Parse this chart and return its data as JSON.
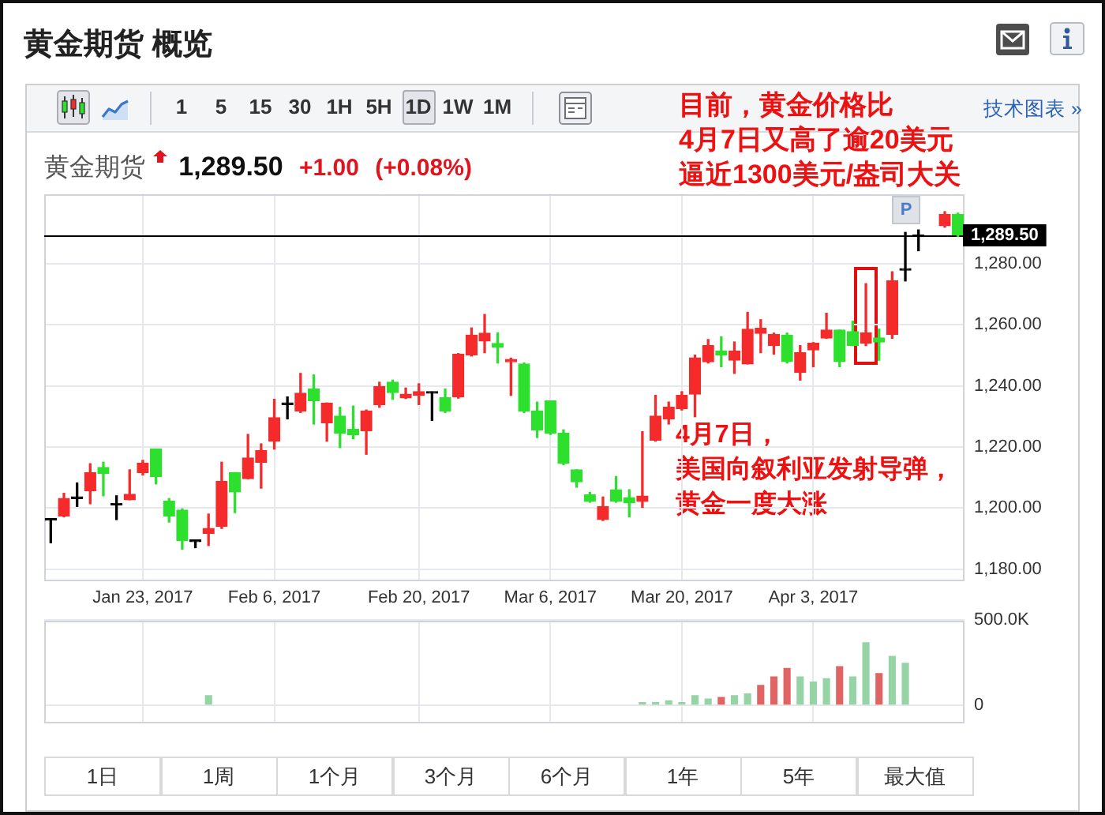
{
  "chart_data": [
    {
      "type": "candlestick",
      "title": "黄金期货 概览",
      "subtitle": "黄金期货 1,289.50 +1.00 (+0.08%)",
      "annotations": [
        "目前，黄金价格比4月7日又高了逾20美元逼近1300美元/盎司大关",
        "4月7日，美国向叙利亚发射导弹，黄金一度大涨",
        "P",
        "1 5 15 30 1H 5H 1D 1W 1M",
        "技术图表 »",
        "1日",
        "1周",
        "1个月",
        "3个月",
        "6个月",
        "1年",
        "5年",
        "最大值"
      ],
      "categories": [
        null,
        null,
        null,
        null,
        null,
        null,
        null,
        "Jan 23, 2017",
        null,
        null,
        null,
        null,
        null,
        null,
        null,
        null,
        null,
        "Feb 6, 2017",
        null,
        null,
        null,
        null,
        null,
        null,
        null,
        null,
        null,
        null,
        "Feb 20, 2017",
        null,
        null,
        null,
        null,
        null,
        null,
        null,
        null,
        null,
        "Mar 6, 2017",
        null,
        null,
        null,
        null,
        null,
        null,
        null,
        null,
        null,
        "Mar 20, 2017",
        null,
        null,
        null,
        null,
        null,
        null,
        null,
        null,
        null,
        "Apr 3, 2017",
        null,
        null,
        null,
        null,
        null,
        null,
        null,
        null,
        null,
        null,
        null
      ],
      "ohlc": [
        [
          1196,
          1196,
          1188.6,
          1196
        ],
        [
          1197.4,
          1204.8,
          1197.1,
          1203.1
        ],
        [
          1203.1,
          1208.2,
          1200.5,
          1203.1
        ],
        [
          1205.6,
          1214.5,
          1201.4,
          1211.6
        ],
        [
          1213.3,
          1215,
          1204,
          1211.3
        ],
        [
          1201,
          1204,
          1196.2,
          1201
        ],
        [
          1202.7,
          1212.5,
          1202.7,
          1204.5
        ],
        [
          1211.6,
          1215.6,
          1210.8,
          1214.7
        ],
        [
          1219.3,
          1219.3,
          1207.9,
          1210.3
        ],
        [
          1202.2,
          1203.1,
          1195.4,
          1197.4
        ],
        [
          1199.3,
          1199.7,
          1186.5,
          1189.4
        ],
        [
          1189,
          1189,
          1187,
          1189
        ],
        [
          1191.6,
          1198,
          1187.7,
          1193.3
        ],
        [
          1194,
          1215,
          1193.3,
          1208.7
        ],
        [
          1211.6,
          1211.6,
          1198.5,
          1205.3
        ],
        [
          1209.6,
          1224.1,
          1209.6,
          1216.4
        ],
        [
          1215,
          1221,
          1206.5,
          1218.8
        ],
        [
          1221.9,
          1235.6,
          1219.3,
          1229.6
        ],
        [
          1233.9,
          1236.4,
          1229.2,
          1233.9
        ],
        [
          1231.8,
          1244.1,
          1231.3,
          1237.6
        ],
        [
          1239,
          1243.6,
          1227.5,
          1235.2
        ],
        [
          1227.9,
          1234.4,
          1221.9,
          1234.4
        ],
        [
          1230.1,
          1233,
          1219.8,
          1224.5
        ],
        [
          1225.8,
          1233.4,
          1222.7,
          1224
        ],
        [
          1225.3,
          1232.1,
          1217.6,
          1231.8
        ],
        [
          1233.9,
          1241.2,
          1233,
          1239.8
        ],
        [
          1241.2,
          1241.9,
          1235.6,
          1237.8
        ],
        [
          1236.1,
          1239.3,
          1235.9,
          1237.3
        ],
        [
          1236.9,
          1240.7,
          1233.9,
          1238.1
        ],
        [
          1237.6,
          1238,
          1228.7,
          1237.6
        ],
        [
          1236.1,
          1239,
          1231.3,
          1231.8
        ],
        [
          1236.4,
          1250.6,
          1236,
          1250.4
        ],
        [
          1250.1,
          1259,
          1249.8,
          1256.6
        ],
        [
          1254.7,
          1263.4,
          1250.9,
          1257.3
        ],
        [
          1253.9,
          1257.4,
          1247.5,
          1252.7
        ],
        [
          1247.9,
          1249.1,
          1236.9,
          1248.7
        ],
        [
          1247.2,
          1247.5,
          1231.3,
          1231.8
        ],
        [
          1231.8,
          1234.7,
          1223.1,
          1225.6
        ],
        [
          1235.1,
          1235.1,
          1224.1,
          1224.5
        ],
        [
          1224.5,
          1225.6,
          1214.2,
          1214.7
        ],
        [
          1212.5,
          1212.5,
          1206.8,
          1208.6
        ],
        [
          1204.3,
          1205.1,
          1201.9,
          1202.2
        ],
        [
          1196.2,
          1203.6,
          1195.9,
          1200.5
        ],
        [
          1206,
          1210.3,
          1201.9,
          1202.2
        ],
        [
          1203.4,
          1206,
          1197.1,
          1201.7
        ],
        [
          1202.2,
          1225,
          1200.2,
          1203.9
        ],
        [
          1222.2,
          1236.9,
          1221.9,
          1230.1
        ],
        [
          1229.2,
          1234.7,
          1227.5,
          1233
        ],
        [
          1232.5,
          1238.1,
          1232.1,
          1236.9
        ],
        [
          1237.3,
          1250.1,
          1229.9,
          1249.2
        ],
        [
          1247.9,
          1255.2,
          1247.5,
          1253.2
        ],
        [
          1251.4,
          1256.1,
          1246.3,
          1250.1
        ],
        [
          1248.4,
          1254.4,
          1244.1,
          1251.4
        ],
        [
          1247.2,
          1264.1,
          1247.2,
          1258.6
        ],
        [
          1257.2,
          1261.7,
          1250.9,
          1258.9
        ],
        [
          1253.2,
          1257.3,
          1250.4,
          1256.9
        ],
        [
          1256.6,
          1257.3,
          1247.5,
          1248
        ],
        [
          1244.4,
          1253.2,
          1241.9,
          1250.9
        ],
        [
          1251.8,
          1254.2,
          1246.3,
          1254
        ],
        [
          1255.7,
          1263.8,
          1255.6,
          1258.3
        ],
        [
          1258.3,
          1258.3,
          1246.3,
          1248
        ],
        [
          1257.8,
          1261.2,
          1253.2,
          1253.2
        ],
        [
          1254,
          1273.5,
          1253.2,
          1257.4
        ],
        [
          1255.7,
          1258.6,
          1248.4,
          1254.4
        ],
        [
          1256.9,
          1277.4,
          1255.6,
          1274.4
        ],
        [
          1277.9,
          1290.3,
          1274.4,
          1277.9
        ],
        [
          1288.9,
          1291.1,
          1284.3,
          1288.9
        ],
        null,
        [
          1292.5,
          1297.1,
          1292,
          1296.2
        ],
        [
          1296.2,
          1296.6,
          1289,
          1289.5
        ]
      ],
      "colors": [
        "#000000",
        "#f52a2a",
        "#000000",
        "#f52a2a",
        "#2ee02e",
        "#000000",
        "#f52a2a",
        "#f52a2a",
        "#2ee02e",
        "#2ee02e",
        "#2ee02e",
        "#000000",
        "#f52a2a",
        "#f52a2a",
        "#2ee02e",
        "#f52a2a",
        "#f52a2a",
        "#f52a2a",
        "#000000",
        "#f52a2a",
        "#2ee02e",
        "#f52a2a",
        "#2ee02e",
        "#2ee02e",
        "#f52a2a",
        "#f52a2a",
        "#2ee02e",
        "#f52a2a",
        "#f52a2a",
        "#000000",
        "#2ee02e",
        "#f52a2a",
        "#f52a2a",
        "#f52a2a",
        "#2ee02e",
        "#f52a2a",
        "#2ee02e",
        "#2ee02e",
        "#2ee02e",
        "#2ee02e",
        "#2ee02e",
        "#2ee02e",
        "#f52a2a",
        "#2ee02e",
        "#2ee02e",
        "#f52a2a",
        "#f52a2a",
        "#f52a2a",
        "#f52a2a",
        "#f52a2a",
        "#f52a2a",
        "#2ee02e",
        "#f52a2a",
        "#f52a2a",
        "#f52a2a",
        "#f52a2a",
        "#2ee02e",
        "#f52a2a",
        "#f52a2a",
        "#f52a2a",
        "#2ee02e",
        "#2ee02e",
        "#f52a2a",
        "#2ee02e",
        "#f52a2a",
        "#000000",
        "#000000",
        null,
        "#f52a2a",
        "#2ee02e"
      ],
      "ylim": [
        1176,
        1303
      ],
      "yticks": [
        {
          "value": 1180,
          "label": "1,180.00"
        },
        {
          "value": 1200,
          "label": "1,200.00"
        },
        {
          "value": 1220,
          "label": "1,220.00"
        },
        {
          "value": 1240,
          "label": "1,240.00"
        },
        {
          "value": 1260,
          "label": "1,260.00"
        },
        {
          "value": 1280,
          "label": "1,280.00"
        }
      ],
      "grid": true,
      "ref_lines": [
        {
          "axis": "y",
          "value": 1289.5,
          "label": "1,289.50",
          "color": "#000000"
        }
      ]
    },
    {
      "type": "bar",
      "categories": [
        null,
        null,
        null,
        null,
        null,
        null,
        null,
        null,
        null,
        null,
        null,
        null,
        null,
        null,
        null,
        null,
        null,
        null,
        null,
        null,
        null,
        null,
        null,
        null,
        null,
        null,
        null,
        null,
        null,
        null,
        null,
        null,
        null,
        null,
        null,
        null,
        null,
        null,
        null,
        null,
        null,
        null,
        null,
        null,
        null,
        null,
        null,
        null,
        null,
        null,
        null,
        null,
        null,
        null,
        null,
        null,
        null,
        null,
        null,
        null,
        null,
        null,
        null,
        null,
        null,
        null,
        null,
        null,
        null,
        null
      ],
      "values": [
        null,
        null,
        null,
        null,
        null,
        null,
        null,
        null,
        null,
        null,
        null,
        null,
        60000,
        null,
        null,
        null,
        null,
        null,
        null,
        null,
        null,
        null,
        null,
        null,
        null,
        null,
        null,
        null,
        null,
        null,
        null,
        null,
        null,
        null,
        null,
        null,
        null,
        null,
        null,
        null,
        null,
        null,
        null,
        null,
        null,
        20000,
        20000,
        30000,
        20000,
        60000,
        40000,
        50000,
        60000,
        70000,
        120000,
        170000,
        220000,
        170000,
        140000,
        160000,
        230000,
        170000,
        370000,
        190000,
        290000,
        250000,
        null,
        null,
        null,
        null
      ],
      "colors": [
        null,
        null,
        null,
        null,
        null,
        null,
        null,
        null,
        null,
        null,
        null,
        null,
        "#96d4a6",
        null,
        null,
        null,
        null,
        null,
        null,
        null,
        null,
        null,
        null,
        null,
        null,
        null,
        null,
        null,
        null,
        null,
        null,
        null,
        null,
        null,
        null,
        null,
        null,
        null,
        null,
        null,
        null,
        null,
        null,
        null,
        null,
        "#96d4a6",
        "#96d4a6",
        "#96d4a6",
        "#96d4a6",
        "#96d4a6",
        "#96d4a6",
        "#e06464",
        "#96d4a6",
        "#96d4a6",
        "#e06464",
        "#e06464",
        "#e06464",
        "#96d4a6",
        "#96d4a6",
        "#96d4a6",
        "#e06464",
        "#96d4a6",
        "#96d4a6",
        "#e06464",
        "#96d4a6",
        "#96d4a6",
        null,
        null,
        null,
        null
      ],
      "ylim": [
        -100000,
        500000
      ],
      "yticks": [
        0,
        {
          "value": 500000,
          "label": "500.0K"
        }
      ],
      "grid": true,
      "tick_labels": "y"
    }
  ]
}
